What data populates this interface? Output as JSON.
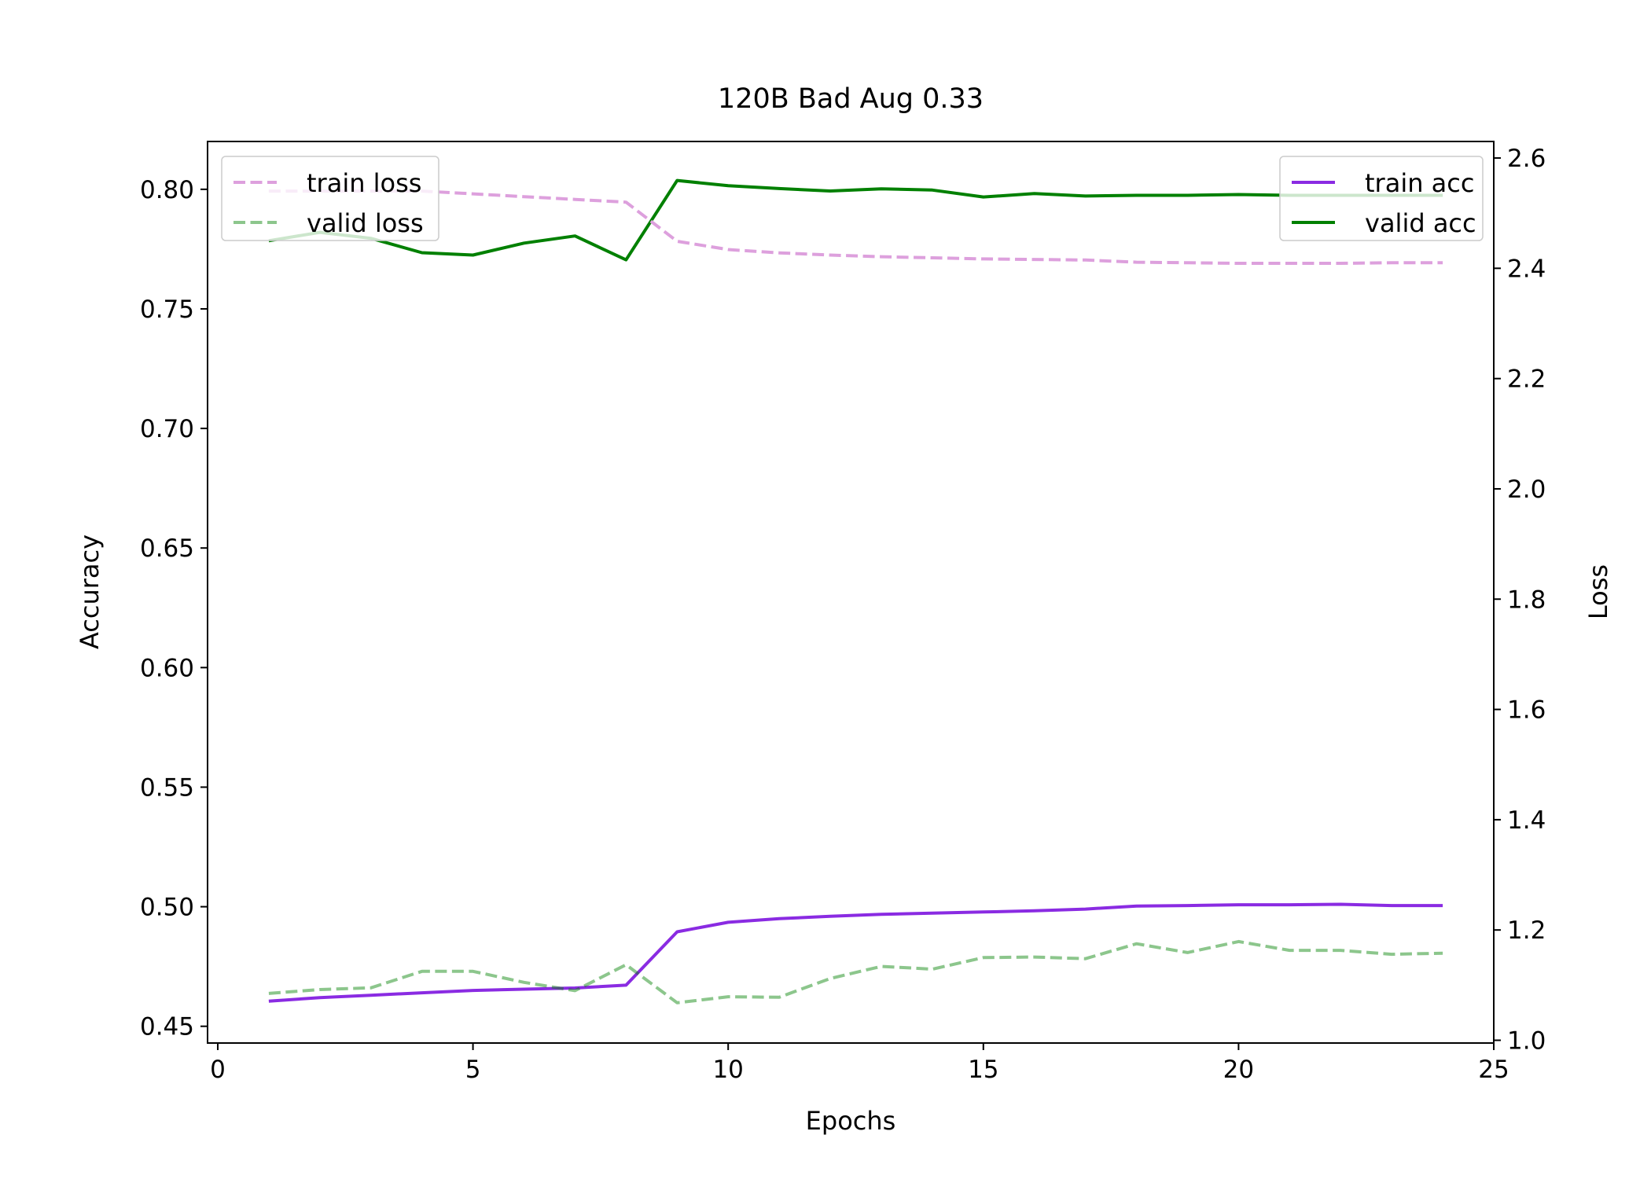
{
  "chart_data": {
    "type": "line",
    "title": "120B Bad Aug 0.33",
    "xlabel": "Epochs",
    "ylabel_left": "Accuracy",
    "ylabel_right": "Loss",
    "xlim": [
      -0.2,
      25
    ],
    "ylim_left": [
      0.443,
      0.82
    ],
    "ylim_right": [
      0.995,
      2.63
    ],
    "x_ticks": [
      0,
      5,
      10,
      15,
      20,
      25
    ],
    "y_left_ticks": [
      0.45,
      0.5,
      0.55,
      0.6,
      0.65,
      0.7,
      0.75,
      0.8
    ],
    "y_right_ticks": [
      1.0,
      1.2,
      1.4,
      1.6,
      1.8,
      2.0,
      2.2,
      2.4,
      2.6
    ],
    "x": [
      1,
      2,
      3,
      4,
      5,
      6,
      7,
      8,
      9,
      10,
      11,
      12,
      13,
      14,
      15,
      16,
      17,
      18,
      19,
      20,
      21,
      22,
      23,
      24
    ],
    "grid": false,
    "series": [
      {
        "name": "train acc",
        "axis": "left",
        "color": "#8a2be2",
        "dash": false,
        "alpha": 1.0,
        "values": [
          0.4605,
          0.462,
          0.463,
          0.464,
          0.465,
          0.4655,
          0.466,
          0.4672,
          0.4895,
          0.4935,
          0.495,
          0.496,
          0.4968,
          0.4973,
          0.4978,
          0.4983,
          0.499,
          0.5003,
          0.5005,
          0.5008,
          0.5008,
          0.501,
          0.5005,
          0.5005
        ]
      },
      {
        "name": "valid acc",
        "axis": "left",
        "color": "#008000",
        "dash": false,
        "alpha": 1.0,
        "values": [
          0.7785,
          0.782,
          0.7795,
          0.7735,
          0.7725,
          0.7775,
          0.7805,
          0.7705,
          0.8037,
          0.8015,
          0.8003,
          0.7993,
          0.8002,
          0.7997,
          0.7968,
          0.7982,
          0.7972,
          0.7975,
          0.7975,
          0.7978,
          0.7975,
          0.7975,
          0.7975,
          0.7975
        ]
      },
      {
        "name": "train loss",
        "axis": "right",
        "color": "#dda0dd",
        "dash": true,
        "alpha": 1.0,
        "values": [
          2.54,
          2.54,
          2.54,
          2.54,
          2.535,
          2.53,
          2.525,
          2.52,
          2.449,
          2.434,
          2.428,
          2.424,
          2.421,
          2.419,
          2.417,
          2.416,
          2.415,
          2.411,
          2.41,
          2.409,
          2.409,
          2.409,
          2.41,
          2.41
        ]
      },
      {
        "name": "valid loss",
        "axis": "right",
        "color": "#008000",
        "dash": true,
        "alpha": 0.45,
        "values": [
          1.085,
          1.092,
          1.095,
          1.125,
          1.125,
          1.105,
          1.09,
          1.137,
          1.068,
          1.079,
          1.078,
          1.112,
          1.134,
          1.129,
          1.15,
          1.151,
          1.148,
          1.175,
          1.159,
          1.179,
          1.163,
          1.163,
          1.156,
          1.158
        ]
      }
    ],
    "legends": [
      {
        "position": "upper-left",
        "entries": [
          "train loss",
          "valid loss"
        ]
      },
      {
        "position": "upper-right",
        "entries": [
          "train acc",
          "valid acc"
        ]
      }
    ]
  }
}
